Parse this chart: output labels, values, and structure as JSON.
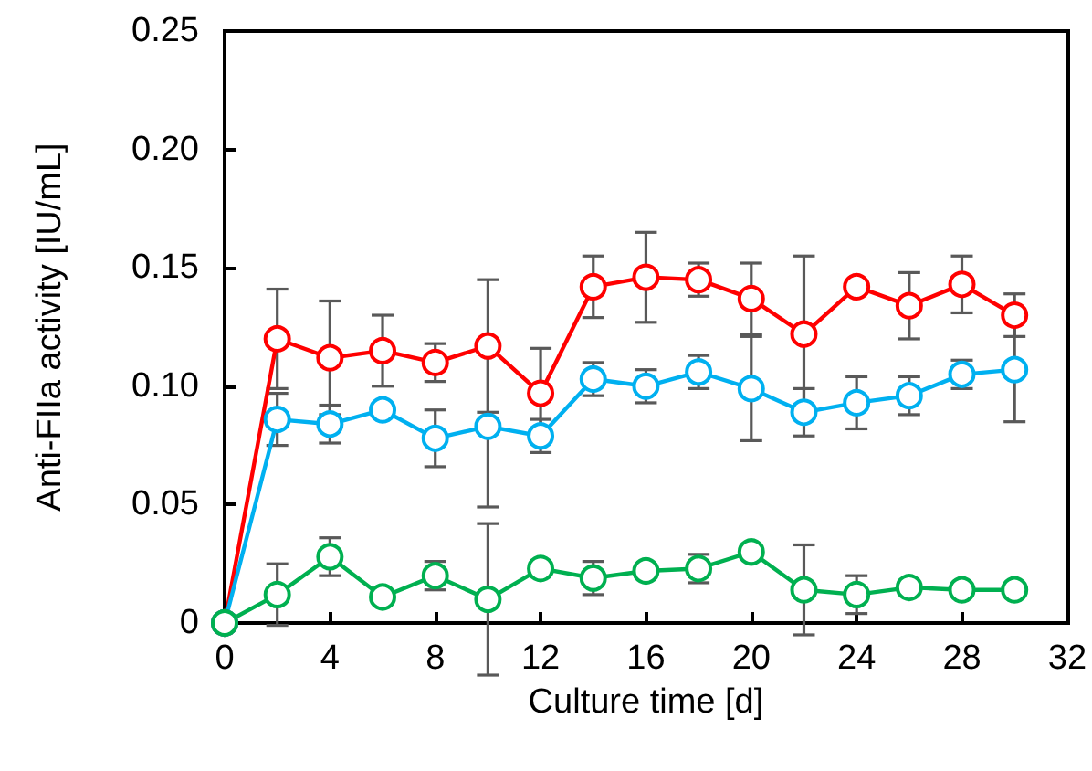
{
  "chart_data": {
    "type": "line",
    "xlabel": "Culture time [d]",
    "ylabel": "Anti-FIIa activity [IU/mL]",
    "x": [
      0,
      2,
      4,
      6,
      8,
      10,
      12,
      14,
      16,
      18,
      20,
      22,
      24,
      26,
      28,
      30
    ],
    "series": [
      {
        "color": "#ff0000",
        "values": [
          0,
          0.12,
          0.112,
          0.115,
          0.11,
          0.117,
          0.097,
          0.142,
          0.146,
          0.145,
          0.137,
          0.122,
          0.142,
          0.134,
          0.143,
          0.13
        ],
        "errors": [
          null,
          0.021,
          0.024,
          0.015,
          0.008,
          0.028,
          0.019,
          0.013,
          0.019,
          0.007,
          0.015,
          0.033,
          null,
          0.014,
          0.012,
          0.009
        ]
      },
      {
        "color": "#00b0f0",
        "values": [
          0,
          0.086,
          0.084,
          0.09,
          0.078,
          0.083,
          0.079,
          0.103,
          0.1,
          0.106,
          0.099,
          0.089,
          0.093,
          0.096,
          0.105,
          0.107
        ],
        "errors": [
          null,
          0.011,
          0.008,
          null,
          0.012,
          0.034,
          0.007,
          0.007,
          0.007,
          0.007,
          0.022,
          0.01,
          0.011,
          0.008,
          0.006,
          0.022
        ]
      },
      {
        "color": "#00b050",
        "values": [
          0,
          0.012,
          0.028,
          0.011,
          0.02,
          0.01,
          0.023,
          0.019,
          0.022,
          0.023,
          0.03,
          0.014,
          0.012,
          0.015,
          0.014,
          0.014
        ],
        "errors": [
          null,
          0.013,
          0.008,
          null,
          0.006,
          0.032,
          null,
          0.007,
          null,
          0.006,
          null,
          0.019,
          0.008,
          null,
          null,
          null
        ]
      }
    ],
    "xlim": [
      0,
      32
    ],
    "xticks": [
      0,
      4,
      8,
      12,
      16,
      20,
      24,
      28,
      32
    ],
    "ylim": [
      0,
      0.25
    ],
    "yticks": [
      {
        "value": 0,
        "label": "0"
      },
      {
        "value": 0.05,
        "label": "0.05"
      },
      {
        "value": 0.1,
        "label": "0.10"
      },
      {
        "value": 0.15,
        "label": "0.15"
      },
      {
        "value": 0.2,
        "label": "0.20"
      },
      {
        "value": 0.25,
        "label": "0.25"
      }
    ],
    "grid": false,
    "marker": "circle",
    "line_style": "solid"
  }
}
